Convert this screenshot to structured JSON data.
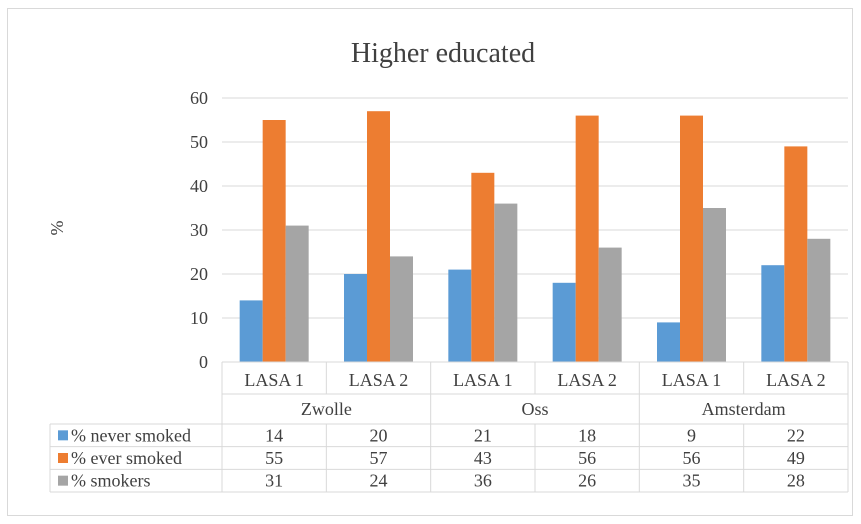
{
  "chart_data": {
    "type": "bar",
    "title": "Higher educated",
    "ylabel": "%",
    "xlabel": "",
    "ylim": [
      0,
      60
    ],
    "yticks": [
      0,
      10,
      20,
      30,
      40,
      50,
      60
    ],
    "grid": true,
    "legend": "data-table",
    "groups": [
      {
        "name": "Zwolle",
        "categories": [
          "LASA 1",
          "LASA 2"
        ]
      },
      {
        "name": "Oss",
        "categories": [
          "LASA 1",
          "LASA 2"
        ]
      },
      {
        "name": "Amsterdam",
        "categories": [
          "LASA 1",
          "LASA 2"
        ]
      }
    ],
    "categories": [
      "LASA 1",
      "LASA 2",
      "LASA 1",
      "LASA 2",
      "LASA 1",
      "LASA 2"
    ],
    "series": [
      {
        "name": "% never smoked",
        "color": "#5b9bd5",
        "values": [
          14,
          20,
          21,
          18,
          9,
          22
        ]
      },
      {
        "name": "% ever smoked",
        "color": "#ed7d31",
        "values": [
          55,
          57,
          43,
          56,
          56,
          49
        ]
      },
      {
        "name": "% smokers",
        "color": "#a5a5a5",
        "values": [
          31,
          24,
          36,
          26,
          35,
          28
        ]
      }
    ]
  }
}
